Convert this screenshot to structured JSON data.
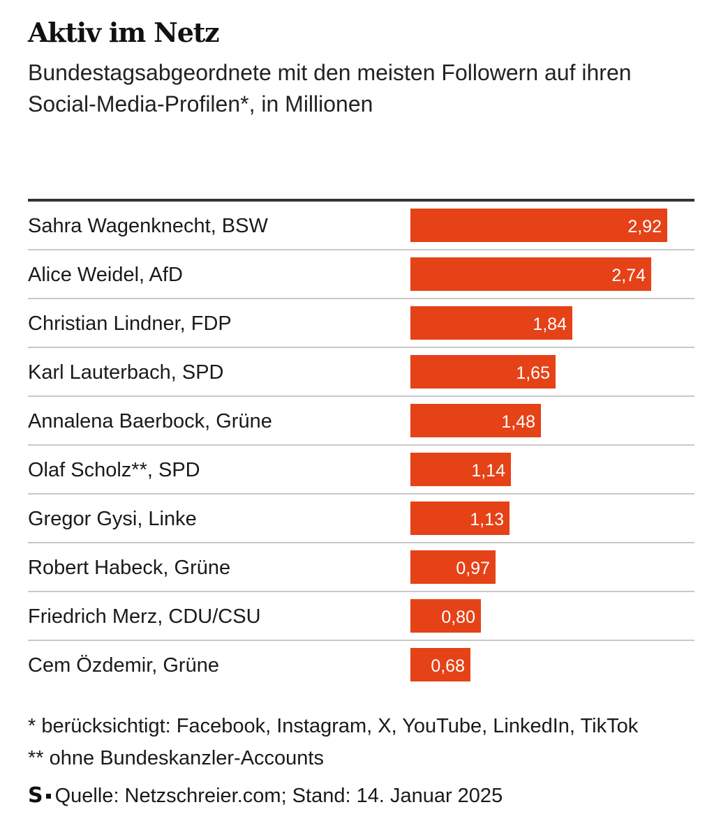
{
  "header": {
    "title": "Aktiv im Netz",
    "subtitle": "Bundestagsabgeordnete mit den meisten Followern auf ihren Social-Media-Profilen*, in Millionen"
  },
  "chart_data": {
    "type": "bar",
    "orientation": "horizontal",
    "categories": [
      "Sahra Wagenknecht, BSW",
      "Alice Weidel, AfD",
      "Christian Lindner, FDP",
      "Karl Lauterbach, SPD",
      "Annalena Baerbock, Grüne",
      "Olaf Scholz**, SPD",
      "Gregor Gysi, Linke",
      "Robert Habeck, Grüne",
      "Friedrich Merz, CDU/CSU",
      "Cem Özdemir, Grüne"
    ],
    "values": [
      2.92,
      2.74,
      1.84,
      1.65,
      1.48,
      1.14,
      1.13,
      0.97,
      0.8,
      0.68
    ],
    "value_labels": [
      "2,92",
      "2,74",
      "1,84",
      "1,65",
      "1,48",
      "1,14",
      "1,13",
      "0,97",
      "0,80",
      "0,68"
    ],
    "xlim": [
      0,
      2.92
    ],
    "bar_color": "#e54217",
    "grid": false
  },
  "footnotes": {
    "note1": "* berücksichtigt: Facebook, Instagram, X, YouTube, LinkedIn, TikTok",
    "note2": "** ohne Bundeskanzler-Accounts"
  },
  "source": {
    "logo": "S",
    "text": "Quelle: Netzschreier.com; Stand: 14. Januar 2025"
  }
}
